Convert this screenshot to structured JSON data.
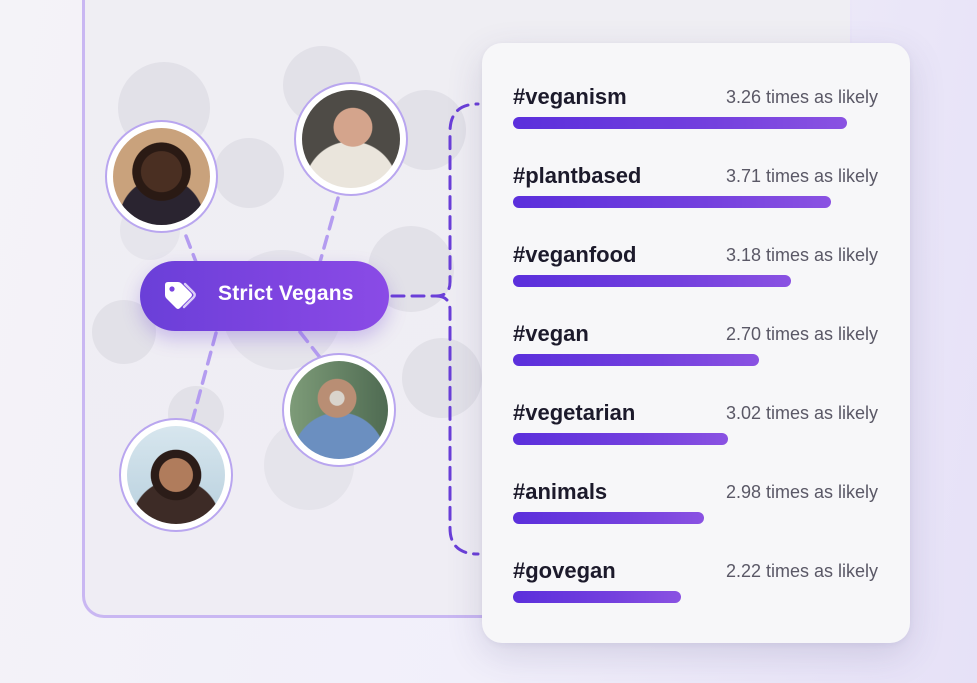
{
  "segment": {
    "label": "Strict Vegans",
    "icon": "tag-icon"
  },
  "avatars": [
    {
      "name": "woman-braids-avatar",
      "skin": "#5a3a2a",
      "bg": "#c8a27e"
    },
    {
      "name": "bald-man-avatar",
      "skin": "#c89b84",
      "bg": "#5d5a55"
    },
    {
      "name": "older-man-glasses-avatar",
      "skin": "#b98e74",
      "bg": "#6c8a6c"
    },
    {
      "name": "smiling-woman-avatar",
      "skin": "#a8785a",
      "bg": "#cfe0ea"
    }
  ],
  "colors": {
    "accent": "#6a3fd8",
    "bar": "#5b2fdc",
    "connector": "#b49cf0",
    "dash": "#6a3fd8"
  },
  "interests": [
    {
      "hashtag": "#veganism",
      "likely": "3.26 times as likely",
      "fill": 0.915
    },
    {
      "hashtag": "#plantbased",
      "likely": "3.71 times as likely",
      "fill": 0.871
    },
    {
      "hashtag": "#veganfood",
      "likely": "3.18 times as likely",
      "fill": 0.762
    },
    {
      "hashtag": "#vegan",
      "likely": "2.70 times as likely",
      "fill": 0.674
    },
    {
      "hashtag": "#vegetarian",
      "likely": "3.02 times as likely",
      "fill": 0.589
    },
    {
      "hashtag": "#animals",
      "likely": "2.98 times as likely",
      "fill": 0.523
    },
    {
      "hashtag": "#govegan",
      "likely": "2.22 times as likely",
      "fill": 0.46
    }
  ]
}
